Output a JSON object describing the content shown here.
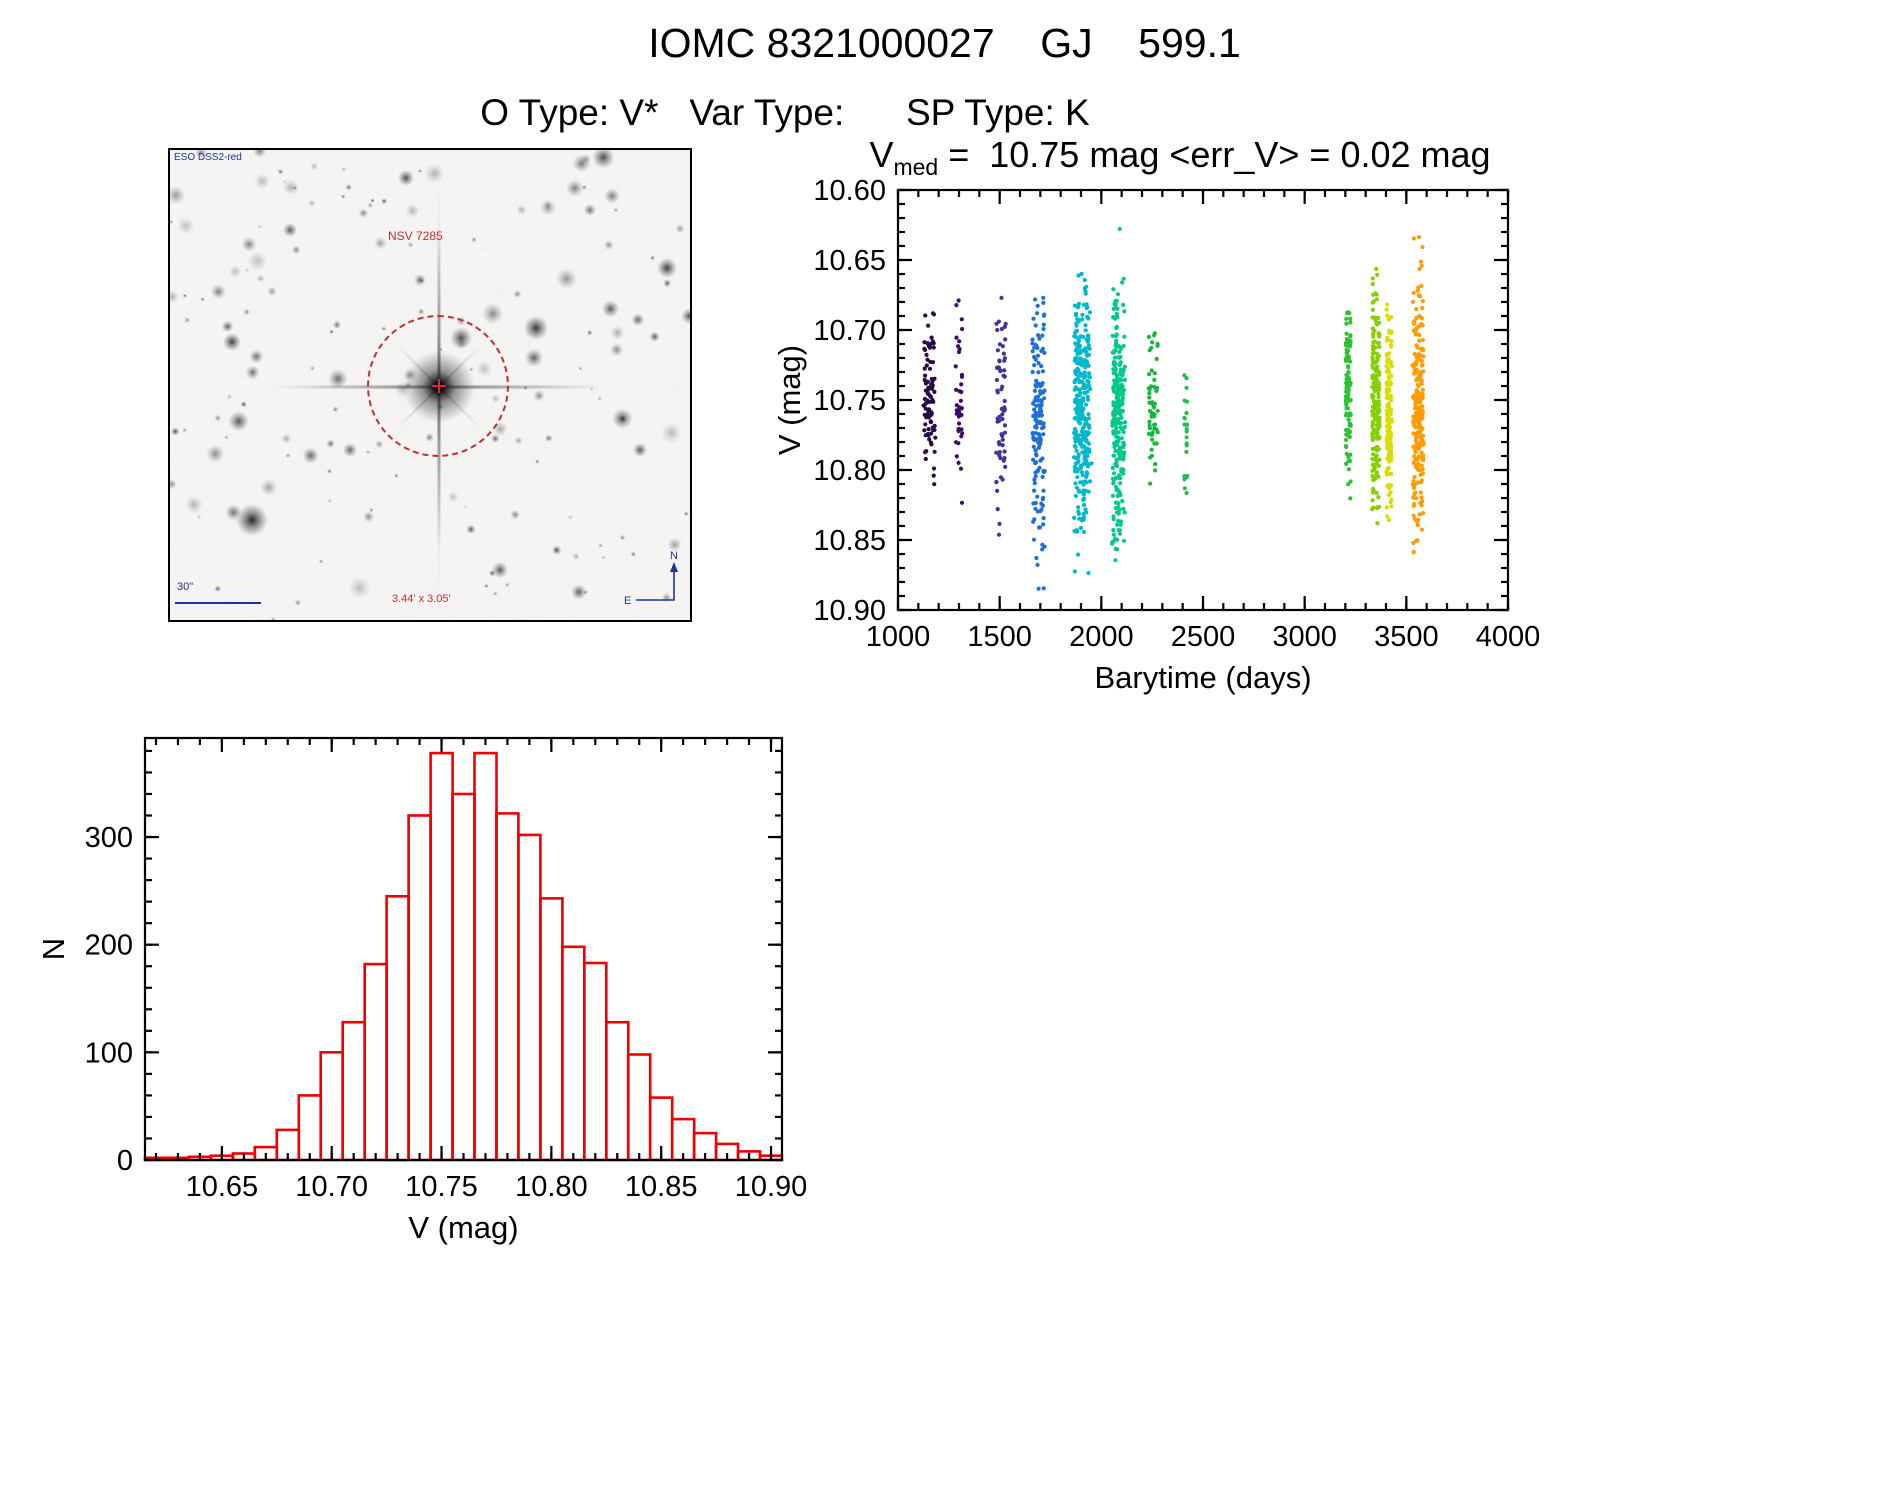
{
  "header": {
    "title": "IOMC 8321000027    GJ    599.1",
    "subtitle": "O Type: V*   Var Type:      SP Type: K"
  },
  "starfield": {
    "survey_label": "ESO DSS2-red",
    "target_label": "NSV 7285",
    "scale_label": "30\"",
    "size_label": "3.44' x 3.05'",
    "east_label": "E",
    "north_label": "N",
    "circle_color": "#c03030",
    "annotation_color": "#20309a",
    "seed": 20240917
  },
  "chart_data": [
    {
      "type": "scatter",
      "title": "V_med = 10.75 mag <err_V> = 0.02 mag",
      "title_prefix": "V",
      "title_sub": "med",
      "title_rest": " =  10.75 mag <err_V> = 0.02 mag",
      "xlabel": "Barytime (days)",
      "ylabel": "V (mag)",
      "xlim": [
        1000,
        4000
      ],
      "ylim_top_to_bottom": [
        10.6,
        10.9
      ],
      "xticks": [
        1000,
        1500,
        2000,
        2500,
        3000,
        3500,
        4000
      ],
      "yticks": [
        10.6,
        10.65,
        10.7,
        10.75,
        10.8,
        10.85,
        10.9
      ],
      "x_minor": 100,
      "y_minor": 0.01,
      "x_decimals": 0,
      "y_decimals": 2,
      "grid": false,
      "legend": "none (color encodes observing epoch, violet = early, orange = late)",
      "clusters": [
        {
          "x": 1155,
          "hw": 28,
          "n": 85,
          "cols": 4,
          "color": "#2a0845",
          "mean": 10.745,
          "sigma": 0.032,
          "min": 10.685,
          "max": 10.825
        },
        {
          "x": 1300,
          "hw": 18,
          "n": 40,
          "cols": 3,
          "color": "#3d0a68",
          "mean": 10.75,
          "sigma": 0.042,
          "min": 10.665,
          "max": 10.83
        },
        {
          "x": 1505,
          "hw": 25,
          "n": 65,
          "cols": 4,
          "color": "#46309e",
          "mean": 10.755,
          "sigma": 0.042,
          "min": 10.675,
          "max": 10.85
        },
        {
          "x": 1690,
          "hw": 30,
          "n": 150,
          "cols": 5,
          "color": "#1e6fd8",
          "mean": 10.765,
          "sigma": 0.045,
          "min": 10.67,
          "max": 10.895
        },
        {
          "x": 1905,
          "hw": 38,
          "n": 330,
          "cols": 6,
          "color": "#00b8cc",
          "mean": 10.755,
          "sigma": 0.042,
          "min": 10.63,
          "max": 10.88
        },
        {
          "x": 2085,
          "hw": 30,
          "n": 260,
          "cols": 5,
          "color": "#00c98a",
          "mean": 10.76,
          "sigma": 0.046,
          "min": 10.625,
          "max": 10.885
        },
        {
          "x": 2255,
          "hw": 25,
          "n": 55,
          "cols": 4,
          "color": "#14b83c",
          "mean": 10.75,
          "sigma": 0.032,
          "min": 10.69,
          "max": 10.825
        },
        {
          "x": 2415,
          "hw": 10,
          "n": 22,
          "cols": 2,
          "color": "#1fc04a",
          "mean": 10.77,
          "sigma": 0.025,
          "min": 10.725,
          "max": 10.82
        },
        {
          "x": 3215,
          "hw": 14,
          "n": 110,
          "cols": 3,
          "color": "#2cc232",
          "mean": 10.745,
          "sigma": 0.031,
          "min": 10.685,
          "max": 10.83
        },
        {
          "x": 3350,
          "hw": 20,
          "n": 200,
          "cols": 4,
          "color": "#86cf00",
          "mean": 10.75,
          "sigma": 0.04,
          "min": 10.65,
          "max": 10.85
        },
        {
          "x": 3415,
          "hw": 14,
          "n": 150,
          "cols": 3,
          "color": "#d8de00",
          "mean": 10.758,
          "sigma": 0.035,
          "min": 10.68,
          "max": 10.84
        },
        {
          "x": 3558,
          "hw": 26,
          "n": 240,
          "cols": 5,
          "color": "#ff9c00",
          "mean": 10.752,
          "sigma": 0.046,
          "min": 10.615,
          "max": 10.865
        }
      ]
    },
    {
      "type": "bar",
      "title": "",
      "xlabel": "V (mag)",
      "ylabel": "N",
      "xlim": [
        10.615,
        10.905
      ],
      "ylim": [
        0,
        392
      ],
      "xticks": [
        10.65,
        10.7,
        10.75,
        10.8,
        10.85,
        10.9
      ],
      "yticks": [
        0,
        100,
        200,
        300
      ],
      "x_minor": 0.01,
      "x_minor_anchor": 10.62,
      "y_minor": 20,
      "x_decimals": 2,
      "y_decimals": 0,
      "grid": false,
      "bin_start": 10.615,
      "bin_width": 0.01,
      "counts": [
        2,
        2,
        3,
        4,
        6,
        12,
        28,
        60,
        100,
        128,
        182,
        245,
        320,
        378,
        340,
        378,
        322,
        302,
        243,
        198,
        183,
        128,
        98,
        58,
        38,
        25,
        15,
        8,
        4
      ],
      "bar_color": "#ee0000"
    }
  ]
}
